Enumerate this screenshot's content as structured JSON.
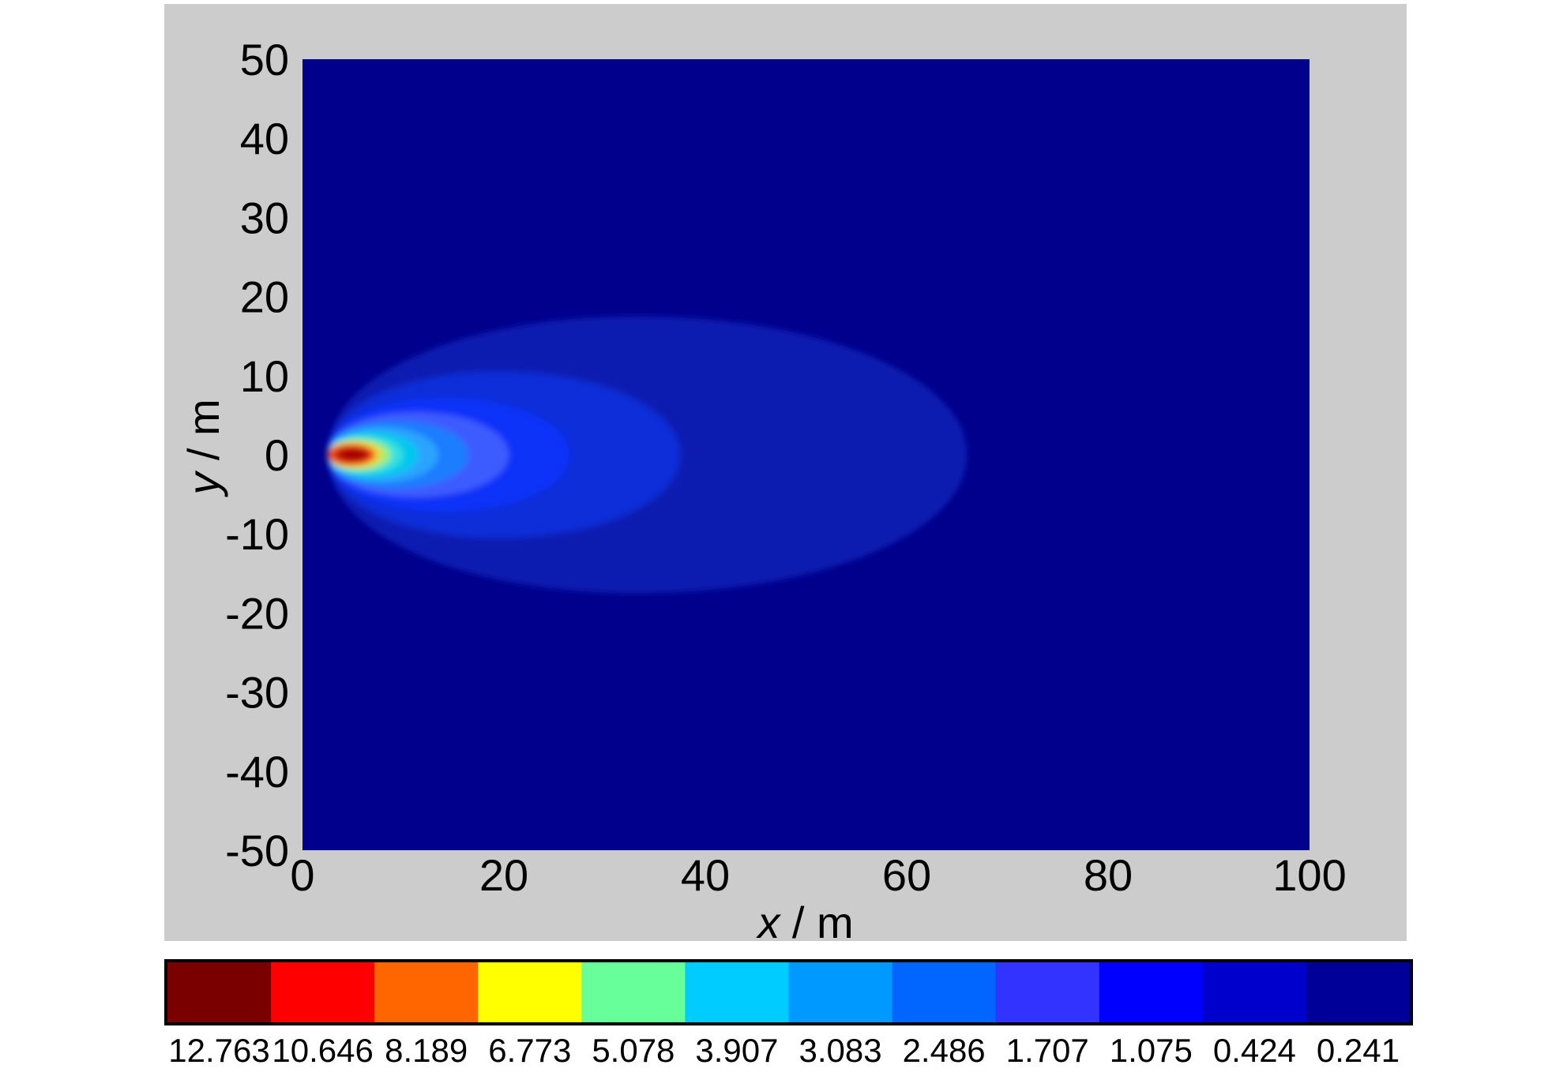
{
  "chart_data": {
    "type": "heatmap",
    "title": "",
    "xlabel": {
      "var": "x",
      "unit": " / m"
    },
    "ylabel": {
      "var": "y",
      "unit": " / m"
    },
    "xlim": [
      0,
      100
    ],
    "ylim": [
      -50,
      50
    ],
    "x_ticks": [
      0,
      20,
      40,
      60,
      80,
      100
    ],
    "y_ticks": [
      50,
      40,
      30,
      20,
      10,
      0,
      -10,
      -20,
      -30,
      -40,
      -50
    ],
    "source": {
      "x": 5.5,
      "y": 0
    },
    "contour_levels": [
      {
        "level": "0.424",
        "color": "#0a1fb0",
        "x_min": 2.5,
        "x_max": 66,
        "y_half": 17.5
      },
      {
        "level": "1.075",
        "color": "#0f2ed8",
        "x_min": 2.5,
        "x_max": 37.5,
        "y_half": 10.5
      },
      {
        "level": "1.707",
        "color": "#0a32f8",
        "x_min": 2.5,
        "x_max": 26.5,
        "y_half": 7.2
      },
      {
        "level": "2.486",
        "color": "#3d5cff",
        "x_min": 2.5,
        "x_max": 20.5,
        "y_half": 5.4
      },
      {
        "level": "3.083",
        "color": "#1f7dff",
        "x_min": 2.5,
        "x_max": 16.5,
        "y_half": 4.3
      },
      {
        "level": "3.907",
        "color": "#2aa4ff",
        "x_min": 2.5,
        "x_max": 13.5,
        "y_half": 3.5
      },
      {
        "level": "5.078",
        "color": "#00c8ee",
        "x_min": 2.5,
        "x_max": 11.5,
        "y_half": 2.9
      },
      {
        "level": "6.773",
        "color": "#35e0e0",
        "x_min": 2.5,
        "x_max": 10.0,
        "y_half": 2.4
      },
      {
        "level": "8.189",
        "color": "#9fef7a",
        "x_min": 2.5,
        "x_max": 8.8,
        "y_half": 2.0
      },
      {
        "level": "10.646",
        "color": "#f0d238",
        "x_min": 2.5,
        "x_max": 7.9,
        "y_half": 1.7
      },
      {
        "level": "12.763",
        "color": "#f04018",
        "x_min": 2.5,
        "x_max": 7.2,
        "y_half": 1.35
      },
      {
        "level": "12.763+",
        "color": "#a80000",
        "x_min": 3.4,
        "x_max": 6.6,
        "y_half": 0.85
      }
    ],
    "background_color": "#00008c",
    "colorbar": {
      "labels": [
        "12.763",
        "10.646",
        "8.189",
        "6.773",
        "5.078",
        "3.907",
        "3.083",
        "2.486",
        "1.707",
        "1.075",
        "0.424",
        "0.241"
      ],
      "colors": [
        "#7a0000",
        "#ff0000",
        "#ff6600",
        "#ffff00",
        "#66ff99",
        "#00ccff",
        "#0099ff",
        "#0066ff",
        "#3333ff",
        "#0000ff",
        "#0000cc",
        "#000099"
      ]
    }
  }
}
